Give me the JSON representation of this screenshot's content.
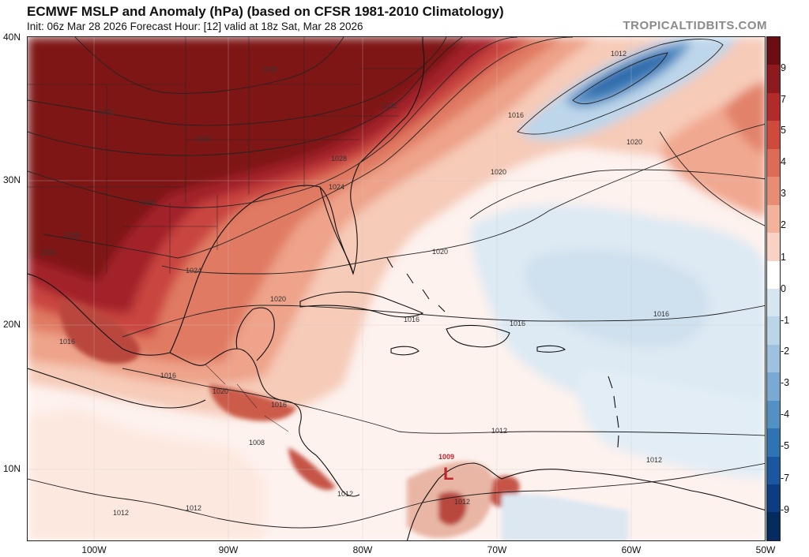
{
  "header": {
    "title": "ECMWF MSLP and Anomaly (hPa) (based on CFSR 1981-2010 Climatology)",
    "subtitle": "Init: 06z Mar 28 2026   Forecast Hour: [12]   valid at 18z Sat, Mar 28 2026",
    "brand": "TROPICALTIDBITS.COM"
  },
  "axes": {
    "lat_labels": [
      "40N",
      "30N",
      "20N",
      "10N"
    ],
    "lon_labels": [
      "100W",
      "90W",
      "80W",
      "70W",
      "60W",
      "50W"
    ]
  },
  "colorbar": {
    "labels": [
      "9",
      "7",
      "5",
      "4",
      "3",
      "2",
      "1",
      "0",
      "-1",
      "-2",
      "-3",
      "-4",
      "-5",
      "-7",
      "-9"
    ],
    "colors": [
      "#6b0d12",
      "#8e1a1f",
      "#b32a2a",
      "#cf4a3c",
      "#de6b55",
      "#e98c74",
      "#f3b29c",
      "#f8d2c3",
      "#ffffff",
      "#d7e5f0",
      "#bcd4e8",
      "#9dc1df",
      "#7aaad3",
      "#5390c4",
      "#2f73b2",
      "#1a57a0",
      "#0c3d80",
      "#062b5f"
    ]
  },
  "map": {
    "isobar_labels": [
      "1036",
      "1032",
      "1032",
      "1032",
      "1028",
      "1028",
      "1028",
      "1024",
      "1024",
      "1024",
      "1020",
      "1020",
      "1020",
      "1020",
      "1016",
      "1016",
      "1016",
      "1016",
      "1016",
      "1012",
      "1012",
      "1012",
      "1012",
      "1012",
      "1016",
      "1020",
      "1012",
      "1012",
      "1016",
      "1008"
    ],
    "low_marker": "L",
    "low_value": "1009"
  }
}
